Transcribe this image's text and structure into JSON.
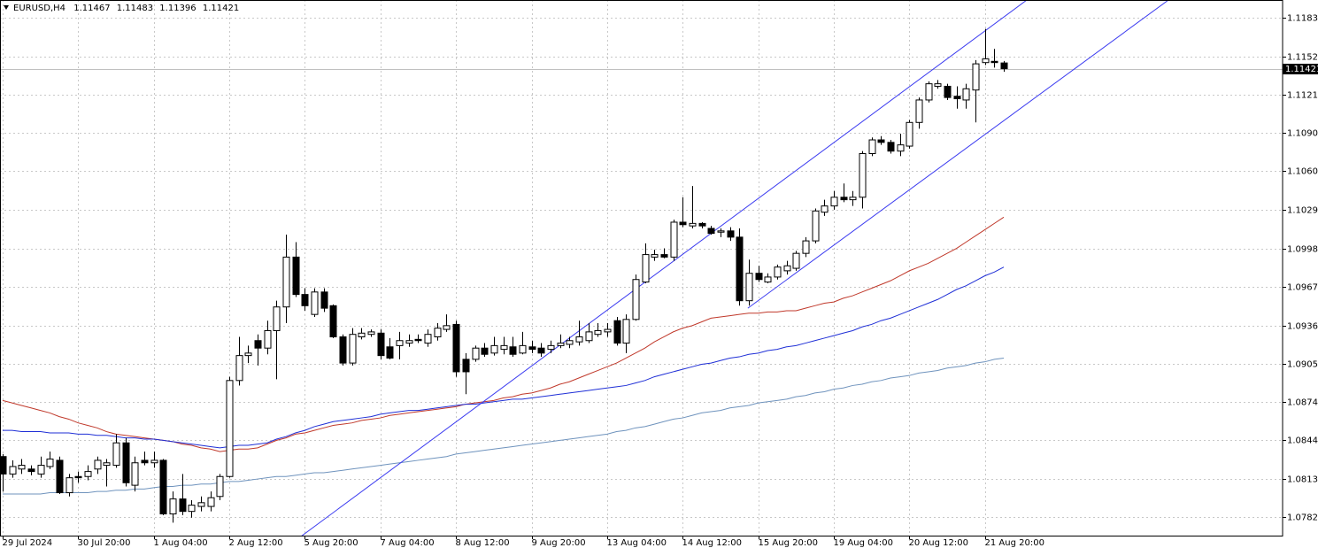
{
  "chart_data": {
    "type": "candlestick",
    "title": "EURUSD,H4",
    "categories": [
      "29 Jul 2024",
      null,
      null,
      null,
      null,
      null,
      null,
      null,
      "30 Jul 20:00",
      null,
      null,
      null,
      null,
      null,
      null,
      null,
      "1 Aug 04:00",
      null,
      null,
      null,
      null,
      null,
      null,
      null,
      "2 Aug 12:00",
      null,
      null,
      null,
      null,
      null,
      null,
      null,
      "5 Aug 20:00",
      null,
      null,
      null,
      null,
      null,
      null,
      null,
      "7 Aug 04:00",
      null,
      null,
      null,
      null,
      null,
      null,
      null,
      "8 Aug 12:00",
      null,
      null,
      null,
      null,
      null,
      null,
      null,
      "9 Aug 20:00",
      null,
      null,
      null,
      null,
      null,
      null,
      null,
      "13 Aug 04:00",
      null,
      null,
      null,
      null,
      null,
      null,
      null,
      "14 Aug 12:00",
      null,
      null,
      null,
      null,
      null,
      null,
      null,
      "15 Aug 20:00",
      null,
      null,
      null,
      null,
      null,
      null,
      null,
      "19 Aug 04:00",
      null,
      null,
      null,
      null,
      null,
      null,
      null,
      "20 Aug 12:00",
      null,
      null,
      null,
      null,
      null,
      null,
      null,
      "21 Aug 20:00",
      null,
      null
    ],
    "open": [
      1.0831,
      1.0817,
      1.0821,
      1.0821,
      1.0817,
      1.0823,
      1.0828,
      1.0802,
      1.0815,
      1.0815,
      1.0821,
      1.0824,
      1.0824,
      1.0842,
      1.0808,
      1.0828,
      1.0826,
      1.0828,
      1.0785,
      1.0797,
      1.0787,
      1.0791,
      1.0791,
      1.0799,
      1.0815,
      1.0892,
      1.0912,
      1.0924,
      1.0918,
      1.0932,
      1.0951,
      1.0991,
      1.0961,
      1.0945,
      1.0963,
      1.0952,
      1.0927,
      1.0906,
      1.0927,
      1.0929,
      1.093,
      1.0919,
      1.092,
      1.0922,
      1.0925,
      1.0922,
      1.0927,
      1.0933,
      1.0937,
      1.0909,
      1.0909,
      1.0918,
      1.0914,
      1.0917,
      1.0919,
      1.0914,
      1.0919,
      1.0918,
      1.0917,
      1.092,
      1.0921,
      1.0923,
      1.0924,
      1.0929,
      1.0931,
      1.094,
      1.0922,
      1.0941,
      1.0971,
      1.0991,
      1.0993,
      1.0991,
      1.1019,
      1.1016,
      1.1018,
      1.1014,
      1.1011,
      1.1012,
      1.1007,
      1.0956,
      1.0978,
      1.0971,
      1.0975,
      1.098,
      1.0982,
      1.0994,
      1.1004,
      1.1027,
      1.1032,
      1.1039,
      1.1037,
      1.1039,
      1.1074,
      1.1085,
      1.1083,
      1.1076,
      1.108,
      1.1099,
      1.1117,
      1.1128,
      1.1128,
      1.112,
      1.1117,
      1.1125,
      1.1147,
      1.1148,
      1.11467
    ],
    "high": [
      1.0833,
      1.0828,
      1.0829,
      1.0824,
      1.0831,
      1.0835,
      1.0831,
      1.0817,
      1.0819,
      1.0824,
      1.0831,
      1.0829,
      1.0849,
      1.0846,
      1.0831,
      1.0835,
      1.0835,
      1.0829,
      1.0803,
      1.0817,
      1.0796,
      1.0799,
      1.0803,
      1.0817,
      1.0895,
      1.0927,
      1.092,
      1.0929,
      1.094,
      1.0956,
      1.1009,
      1.1003,
      1.0966,
      1.0966,
      1.0966,
      1.0953,
      1.0929,
      1.0934,
      1.0934,
      1.0933,
      1.0933,
      1.0926,
      1.0931,
      1.0929,
      1.0929,
      1.0933,
      1.0938,
      1.0945,
      1.094,
      1.0914,
      1.092,
      1.0922,
      1.0927,
      1.0927,
      1.0927,
      1.0931,
      1.0924,
      1.0922,
      1.0924,
      1.0929,
      1.0927,
      1.094,
      1.0938,
      1.0938,
      1.0938,
      1.0943,
      1.0945,
      1.0977,
      1.1002,
      1.0997,
      1.0998,
      1.1021,
      1.1039,
      1.1048,
      1.1019,
      1.1016,
      1.1014,
      1.1015,
      1.1014,
      1.0989,
      1.0984,
      1.0978,
      1.0985,
      1.0988,
      1.0996,
      1.1007,
      1.103,
      1.1037,
      1.1044,
      1.105,
      1.1044,
      1.1076,
      1.1087,
      1.1088,
      1.1085,
      1.109,
      1.1101,
      1.1119,
      1.1132,
      1.1133,
      1.113,
      1.1128,
      1.113,
      1.1149,
      1.1174,
      1.1158,
      1.11483
    ],
    "low": [
      1.0803,
      1.0814,
      1.0817,
      1.0816,
      1.0814,
      1.0821,
      1.0801,
      1.0799,
      1.081,
      1.0812,
      1.0817,
      1.0807,
      1.0822,
      1.0807,
      1.0803,
      1.0824,
      1.0822,
      1.0784,
      1.0778,
      1.0784,
      1.0782,
      1.0787,
      1.0787,
      1.0796,
      1.0814,
      1.0888,
      1.0906,
      1.0904,
      1.0913,
      1.0893,
      1.0938,
      1.0959,
      1.0948,
      1.0943,
      1.0947,
      1.0926,
      1.0904,
      1.0904,
      1.0925,
      1.0927,
      1.0909,
      1.0909,
      1.0909,
      1.0919,
      1.0922,
      1.0919,
      1.0924,
      1.0931,
      1.0895,
      1.0881,
      1.0907,
      1.0911,
      1.0912,
      1.0913,
      1.0911,
      1.0913,
      1.0914,
      1.0911,
      1.0914,
      1.0918,
      1.0918,
      1.092,
      1.0922,
      1.0927,
      1.0927,
      1.092,
      1.0914,
      1.094,
      1.097,
      1.0988,
      1.099,
      1.0988,
      1.1015,
      1.1014,
      1.1014,
      1.1009,
      1.1007,
      1.1004,
      1.0952,
      1.0952,
      1.0971,
      1.097,
      1.0973,
      1.0977,
      1.098,
      1.0991,
      1.1002,
      1.1024,
      1.1029,
      1.1035,
      1.1032,
      1.103,
      1.1072,
      1.1081,
      1.1074,
      1.1072,
      1.1078,
      1.1094,
      1.1115,
      1.1126,
      1.1117,
      1.111,
      1.111,
      1.1099,
      1.1145,
      1.1143,
      1.11396
    ],
    "close": [
      1.0817,
      1.0823,
      1.0824,
      1.0819,
      1.0824,
      1.0829,
      1.0802,
      1.0814,
      1.0814,
      1.0819,
      1.0828,
      1.0826,
      1.0842,
      1.081,
      1.0826,
      1.0826,
      1.0828,
      1.0785,
      1.0797,
      1.0787,
      1.0792,
      1.0794,
      1.0798,
      1.0815,
      1.0892,
      1.0912,
      1.0914,
      1.0918,
      1.0932,
      1.0951,
      1.0991,
      1.0961,
      1.0952,
      1.0963,
      1.095,
      1.0927,
      1.0906,
      1.0929,
      1.093,
      1.0931,
      1.0912,
      1.091,
      1.0924,
      1.0924,
      1.0924,
      1.0929,
      1.0934,
      1.0936,
      1.0899,
      1.0899,
      1.0918,
      1.0913,
      1.092,
      1.092,
      1.0913,
      1.092,
      1.0917,
      1.0914,
      1.092,
      1.0922,
      1.0924,
      1.0927,
      1.0931,
      1.0932,
      1.0933,
      1.0922,
      1.0941,
      1.0973,
      1.0993,
      1.0993,
      1.0991,
      1.1019,
      1.1017,
      1.1018,
      1.1016,
      1.101,
      1.1012,
      1.1007,
      1.0956,
      1.0978,
      1.0973,
      1.0975,
      1.0983,
      1.0984,
      1.0994,
      1.1004,
      1.1028,
      1.1032,
      1.1039,
      1.1037,
      1.1039,
      1.1074,
      1.1085,
      1.1083,
      1.1076,
      1.1081,
      1.1099,
      1.1117,
      1.113,
      1.113,
      1.1119,
      1.1118,
      1.1126,
      1.1146,
      1.115,
      1.1147,
      1.11421
    ],
    "up_color": "#ffffff",
    "down_color": "#000000",
    "series": [
      {
        "color": "#c0392b",
        "values": [
          1.0876,
          1.0874,
          1.0872,
          1.087,
          1.0868,
          1.0866,
          1.0863,
          1.0861,
          1.0858,
          1.0856,
          1.0854,
          1.0851,
          1.0849,
          1.0848,
          1.0847,
          1.0846,
          1.0845,
          1.0844,
          1.0843,
          1.0841,
          1.084,
          1.0838,
          1.0837,
          1.0835,
          1.0836,
          1.0837,
          1.0837,
          1.0838,
          1.0841,
          1.0844,
          1.0846,
          1.0849,
          1.085,
          1.0852,
          1.0854,
          1.0856,
          1.0857,
          1.0858,
          1.086,
          1.0861,
          1.0862,
          1.0864,
          1.0865,
          1.0866,
          1.0867,
          1.0868,
          1.0869,
          1.087,
          1.0871,
          1.0873,
          1.0874,
          1.0875,
          1.0876,
          1.0878,
          1.0879,
          1.0881,
          1.0882,
          1.0884,
          1.0886,
          1.0889,
          1.0891,
          1.0894,
          1.0897,
          1.09,
          1.0903,
          1.0906,
          1.091,
          1.0914,
          1.0918,
          1.0923,
          1.0927,
          1.0931,
          1.0934,
          1.0936,
          1.0939,
          1.0942,
          1.0943,
          1.0944,
          1.0945,
          1.0946,
          1.0946,
          1.0947,
          1.0947,
          1.0948,
          1.0948,
          1.095,
          1.0952,
          1.0954,
          1.0955,
          1.0958,
          1.096,
          1.0963,
          1.0966,
          1.0969,
          1.0972,
          1.0976,
          1.098,
          1.0983,
          1.0986,
          1.099,
          1.0994,
          1.0998,
          1.1003,
          1.1008,
          1.1013,
          1.1018,
          1.1023
        ]
      },
      {
        "color": "#1f2fd6",
        "values": [
          1.0852,
          1.0852,
          1.0851,
          1.0851,
          1.0851,
          1.085,
          1.085,
          1.085,
          1.0849,
          1.0849,
          1.0848,
          1.0848,
          1.0847,
          1.0846,
          1.0846,
          1.0845,
          1.0845,
          1.0844,
          1.0843,
          1.0842,
          1.0841,
          1.084,
          1.0839,
          1.0838,
          1.0839,
          1.084,
          1.084,
          1.0841,
          1.0842,
          1.0845,
          1.0847,
          1.085,
          1.0852,
          1.0855,
          1.0857,
          1.0859,
          1.086,
          1.0861,
          1.0862,
          1.0863,
          1.0865,
          1.0866,
          1.0867,
          1.0868,
          1.0868,
          1.0869,
          1.087,
          1.0871,
          1.0872,
          1.0873,
          1.0873,
          1.0874,
          1.0875,
          1.0876,
          1.0877,
          1.0877,
          1.0878,
          1.0879,
          1.088,
          1.0881,
          1.0882,
          1.0883,
          1.0884,
          1.0885,
          1.0886,
          1.0887,
          1.0888,
          1.089,
          1.0892,
          1.0895,
          1.0897,
          1.0899,
          1.0901,
          1.0903,
          1.0905,
          1.0906,
          1.0908,
          1.091,
          1.0911,
          1.0913,
          1.0914,
          1.0916,
          1.0917,
          1.0919,
          1.092,
          1.0922,
          1.0924,
          1.0926,
          1.0928,
          1.093,
          1.0932,
          1.0935,
          1.0937,
          1.094,
          1.0942,
          1.0945,
          1.0948,
          1.0951,
          1.0954,
          1.0957,
          1.0961,
          1.0965,
          1.0968,
          1.0972,
          1.0976,
          1.0979,
          1.0983
        ]
      },
      {
        "color": "#6f93bd",
        "values": [
          1.0801,
          1.0801,
          1.0801,
          1.0801,
          1.0801,
          1.0802,
          1.0802,
          1.0802,
          1.0802,
          1.0802,
          1.0803,
          1.0803,
          1.0804,
          1.0804,
          1.0805,
          1.0805,
          1.0806,
          1.0807,
          1.0807,
          1.0808,
          1.0808,
          1.0809,
          1.0809,
          1.081,
          1.0811,
          1.0811,
          1.0812,
          1.0813,
          1.0814,
          1.0815,
          1.0815,
          1.0816,
          1.0817,
          1.0818,
          1.0818,
          1.0819,
          1.082,
          1.0821,
          1.0822,
          1.0823,
          1.0824,
          1.0825,
          1.0826,
          1.0827,
          1.0828,
          1.0829,
          1.083,
          1.0831,
          1.0833,
          1.0834,
          1.0835,
          1.0836,
          1.0837,
          1.0838,
          1.0839,
          1.084,
          1.0841,
          1.0842,
          1.0843,
          1.0844,
          1.0845,
          1.0846,
          1.0847,
          1.0848,
          1.0849,
          1.0851,
          1.0852,
          1.0854,
          1.0855,
          1.0857,
          1.0859,
          1.0861,
          1.0862,
          1.0864,
          1.0866,
          1.0867,
          1.0868,
          1.087,
          1.0871,
          1.0872,
          1.0874,
          1.0875,
          1.0876,
          1.0877,
          1.0879,
          1.088,
          1.0882,
          1.0883,
          1.0885,
          1.0886,
          1.0888,
          1.0889,
          1.0891,
          1.0892,
          1.0894,
          1.0895,
          1.0896,
          1.0898,
          1.0899,
          1.09,
          1.0902,
          1.0903,
          1.0904,
          1.0906,
          1.0907,
          1.0909,
          1.091
        ]
      }
    ],
    "trendlines": [
      {
        "color": "#3b3bf0",
        "x": [
          31.6,
          108.4
        ],
        "y": [
          1.0767,
          1.1197
        ]
      },
      {
        "color": "#3b3bf0",
        "x": [
          78.9,
          123.4
        ],
        "y": [
          1.095,
          1.1197
        ]
      }
    ],
    "price_line": true,
    "ylim": [
      1.07676,
      1.11972
    ],
    "yticks": [
      {
        "value": 1.1183,
        "label": "1.11830"
      },
      {
        "value": 1.1152,
        "label": "1.11520"
      },
      1.11215,
      1.10905,
      {
        "value": 1.106,
        "label": "1.10600"
      },
      {
        "value": 1.1029,
        "label": "1.10290"
      },
      {
        "value": 1.0998,
        "label": "1.09980"
      },
      {
        "value": 1.0967,
        "label": "1.09670"
      },
      {
        "value": 1.0936,
        "label": "1.09360"
      },
      1.09055,
      1.08745,
      {
        "value": 1.0844,
        "label": "1.08440"
      },
      {
        "value": 1.0813,
        "label": "1.08130"
      },
      1.07825
    ],
    "grid": true
  }
}
